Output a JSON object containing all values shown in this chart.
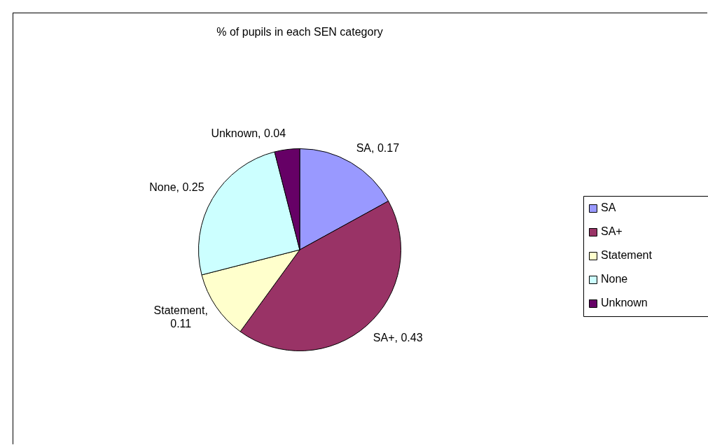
{
  "chart_data": {
    "type": "pie",
    "title": "% of pupils in each SEN category",
    "categories": [
      "SA",
      "SA+",
      "Statement",
      "None",
      "Unknown"
    ],
    "values": [
      0.17,
      0.43,
      0.11,
      0.25,
      0.04
    ],
    "colors": [
      "#9999ff",
      "#993366",
      "#ffffcc",
      "#ccffff",
      "#660066"
    ],
    "value_labels": [
      "SA, 0.17",
      "SA+, 0.43",
      "Statement, 0.11",
      "None, 0.25",
      "Unknown, 0.04"
    ],
    "legend": "right"
  }
}
